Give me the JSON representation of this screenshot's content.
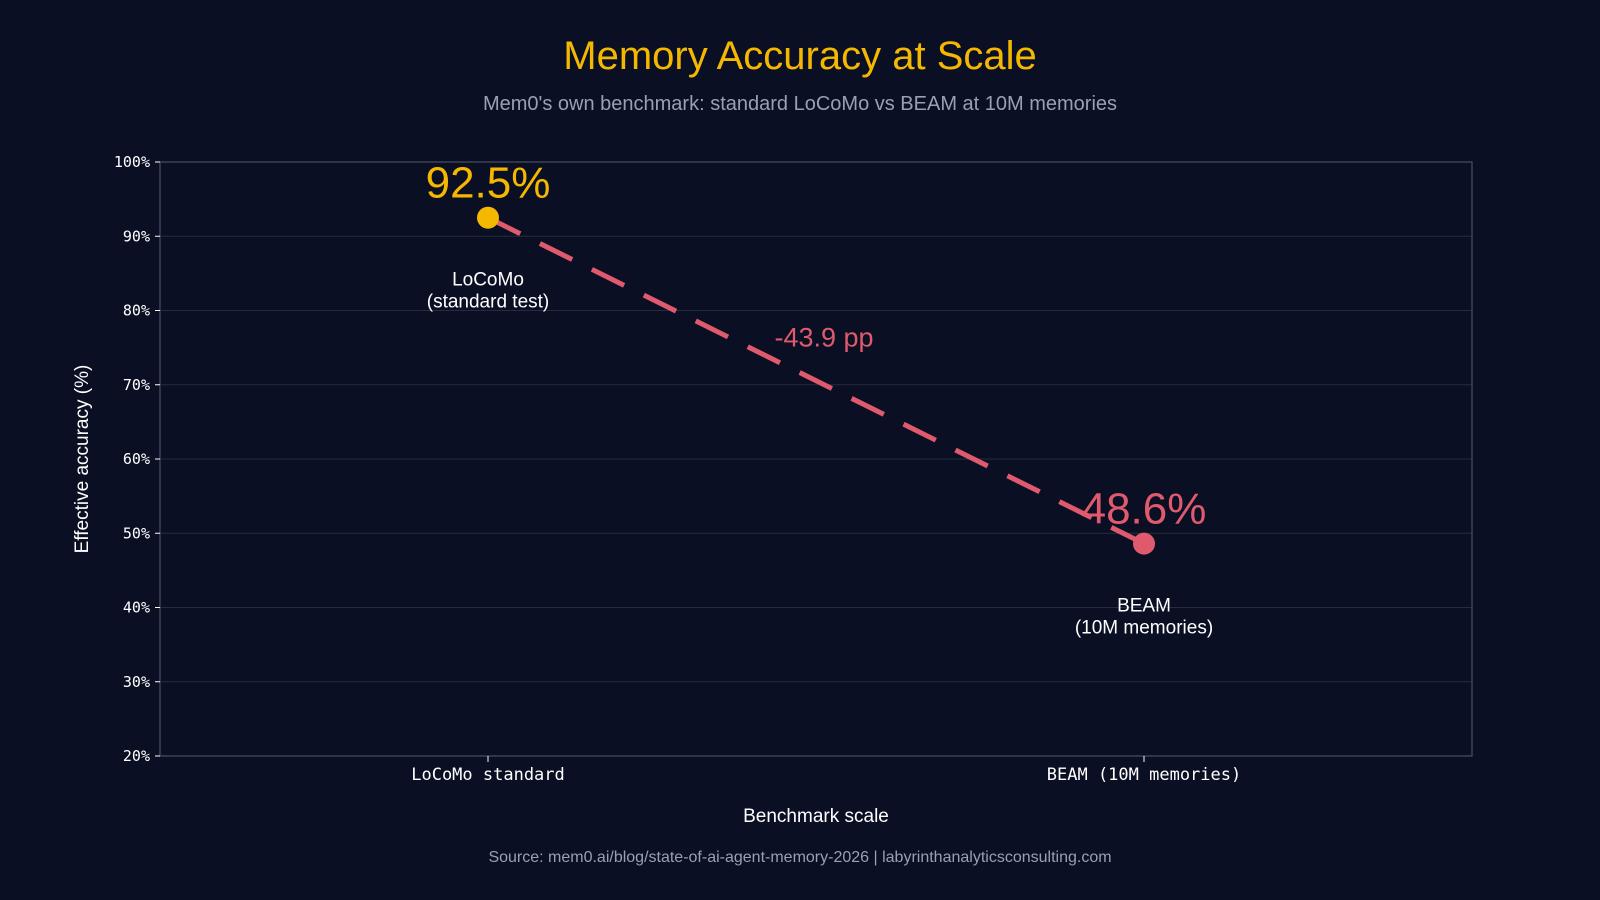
{
  "chart_data": {
    "type": "line",
    "title": "Memory Accuracy at Scale",
    "subtitle": "Mem0's own benchmark: standard LoCoMo vs BEAM at 10M memories",
    "xlabel": "Benchmark scale",
    "ylabel": "Effective accuracy (%)",
    "categories": [
      "LoCoMo standard",
      "BEAM (10M memories)"
    ],
    "ylim": [
      20,
      100
    ],
    "yticks": [
      "20%",
      "30%",
      "40%",
      "50%",
      "60%",
      "70%",
      "80%",
      "90%",
      "100%"
    ],
    "grid": true,
    "points": [
      {
        "category": "LoCoMo standard",
        "value": 92.5,
        "value_label": "92.5%",
        "annotation_lines": [
          "LoCoMo",
          "(standard test)"
        ],
        "color": "#f5b800"
      },
      {
        "category": "BEAM (10M memories)",
        "value": 48.6,
        "value_label": "48.6%",
        "annotation_lines": [
          "BEAM",
          "(10M memories)"
        ],
        "color": "#e05a6e"
      }
    ],
    "connector": {
      "style": "dashed",
      "color": "#e05a6e",
      "label": "-43.9 pp"
    }
  },
  "source": "Source: mem0.ai/blog/state-of-ai-agent-memory-2026  |  labyrinthanalyticsconsulting.com",
  "colors": {
    "background": "#0a0f24",
    "title": "#f5b800",
    "muted_text": "#9aa0b2",
    "axis_text": "#ffffff",
    "grid": "#262c40",
    "frame": "#4a5064"
  }
}
